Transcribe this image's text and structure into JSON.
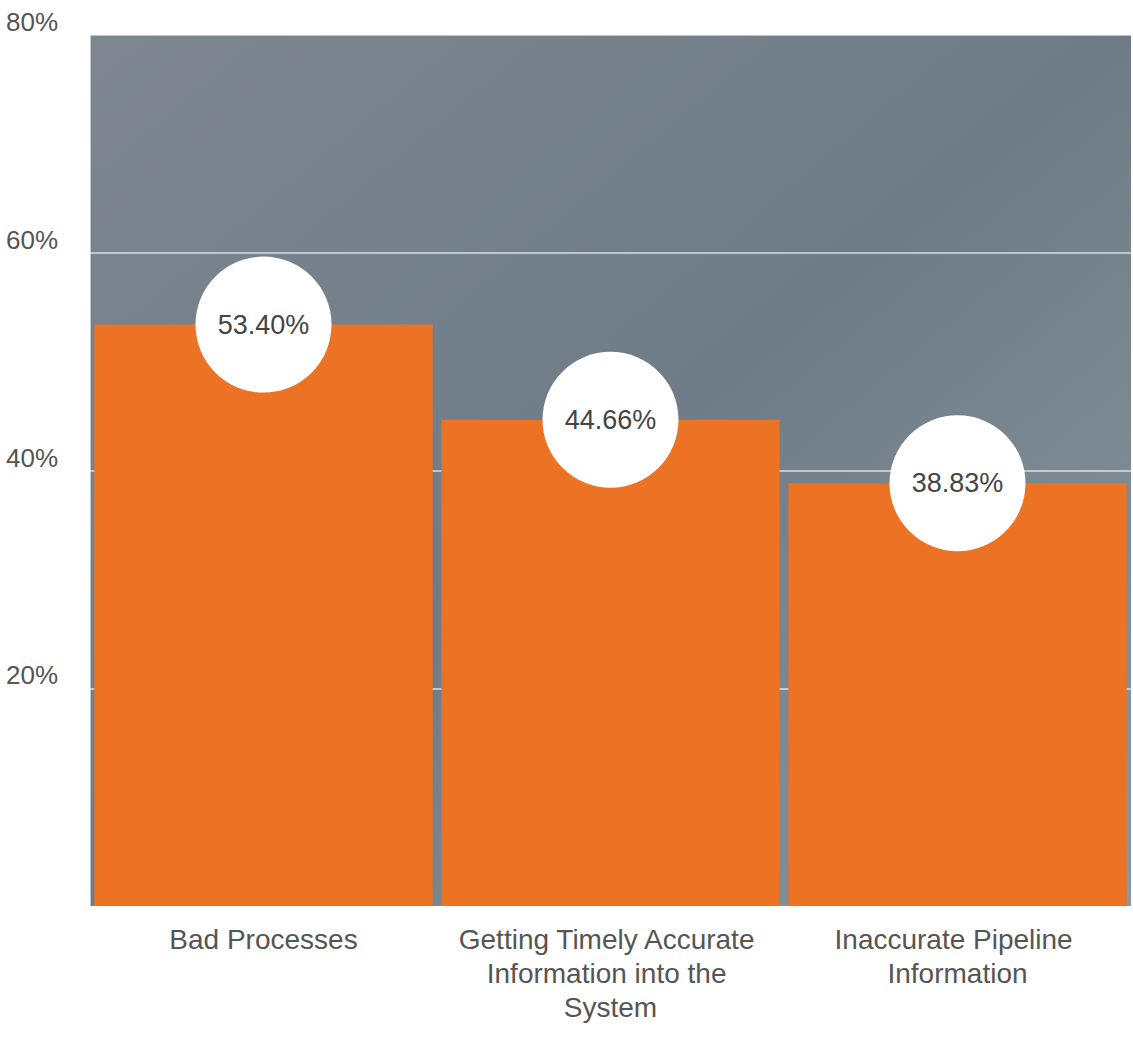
{
  "chart_data": {
    "type": "bar",
    "categories": [
      "Bad Processes",
      "Getting Timely Accurate Information into the System",
      "Inaccurate Pipeline Information"
    ],
    "values": [
      53.4,
      44.66,
      38.83
    ],
    "value_labels": [
      "53.40%",
      "44.66%",
      "38.83%"
    ],
    "color": "#ec7224",
    "ylim": [
      0,
      80
    ],
    "yticks": [
      {
        "value": 20,
        "label": "20%"
      },
      {
        "value": 40,
        "label": "40%"
      },
      {
        "value": 60,
        "label": "60%"
      },
      {
        "value": 80,
        "label": "80%"
      }
    ],
    "grid": true,
    "data_labels": true
  }
}
